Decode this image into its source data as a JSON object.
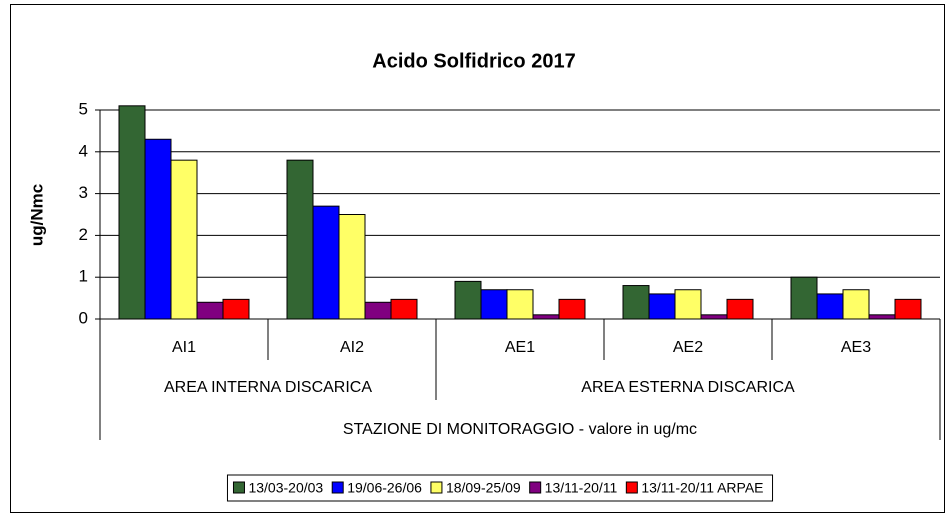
{
  "chart_data": {
    "type": "bar",
    "title": "Acido Solfidrico 2017",
    "ylabel": "ug/Nmc",
    "xlabel": "STAZIONE DI MONITORAGGIO - valore in ug/mc",
    "category_groups": [
      {
        "label": "AREA INTERNA DISCARICA",
        "categories": [
          "AI1",
          "AI2"
        ]
      },
      {
        "label": "AREA ESTERNA DISCARICA",
        "categories": [
          "AE1",
          "AE2",
          "AE3"
        ]
      }
    ],
    "series": [
      {
        "name": "13/03-20/03",
        "color": "#336633",
        "values": [
          5.1,
          3.8,
          0.9,
          0.8,
          1.0
        ]
      },
      {
        "name": "19/06-26/06",
        "color": "#0000ff",
        "values": [
          4.3,
          2.7,
          0.7,
          0.6,
          0.6
        ]
      },
      {
        "name": "18/09-25/09",
        "color": "#ffff66",
        "values": [
          3.8,
          2.5,
          0.7,
          0.7,
          0.7
        ]
      },
      {
        "name": "13/11-20/11",
        "color": "#800080",
        "values": [
          0.4,
          0.4,
          0.1,
          0.1,
          0.1
        ]
      },
      {
        "name": "13/11-20/11 ARPAE",
        "color": "#ff0000",
        "values": [
          0.47,
          0.47,
          0.47,
          0.47,
          0.47
        ]
      }
    ],
    "ylim": [
      0,
      5
    ],
    "yticks": [
      0,
      1,
      2,
      3,
      4,
      5
    ],
    "grid": true,
    "legend": "bottom"
  }
}
